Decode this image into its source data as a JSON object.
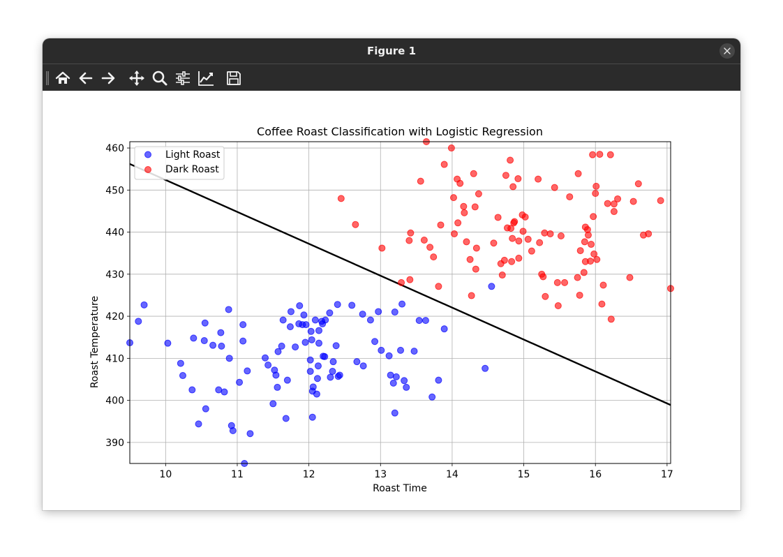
{
  "window": {
    "title": "Figure 1"
  },
  "toolbar": {
    "buttons": [
      "home-icon",
      "back-arrow-icon",
      "forward-arrow-icon",
      "pan-icon",
      "zoom-icon",
      "configure-subplots-icon",
      "edit-axis-icon",
      "save-icon"
    ]
  },
  "colors": {
    "light_roast": "#0000ff",
    "dark_roast": "#ff0000",
    "boundary": "#000000",
    "titlebar": "#2b2b2b"
  },
  "chart_data": {
    "type": "scatter",
    "title": "Coffee Roast Classification with Logistic Regression",
    "xlabel": "Roast Time",
    "ylabel": "Roast Temperature",
    "xlim": [
      9.5,
      17.05
    ],
    "ylim": [
      385,
      461.5
    ],
    "xticks": [
      "10",
      "11",
      "12",
      "13",
      "14",
      "15",
      "16",
      "17"
    ],
    "yticks": [
      "390",
      "400",
      "410",
      "420",
      "430",
      "440",
      "450",
      "460"
    ],
    "grid": true,
    "legend": "top-left",
    "series": [
      {
        "name": "Light Roast",
        "color": "#0000ff",
        "points": [
          [
            9.5,
            413.7
          ],
          [
            9.62,
            418.8
          ],
          [
            9.7,
            422.7
          ],
          [
            10.03,
            413.6
          ],
          [
            10.21,
            408.8
          ],
          [
            10.24,
            405.9
          ],
          [
            10.37,
            402.5
          ],
          [
            10.39,
            414.8
          ],
          [
            10.46,
            394.4
          ],
          [
            10.54,
            414.2
          ],
          [
            10.55,
            418.4
          ],
          [
            10.56,
            398
          ],
          [
            10.66,
            413.1
          ],
          [
            10.74,
            402.5
          ],
          [
            10.77,
            416.1
          ],
          [
            10.78,
            412.9
          ],
          [
            10.82,
            402
          ],
          [
            10.88,
            421.6
          ],
          [
            10.89,
            410
          ],
          [
            10.92,
            394
          ],
          [
            10.94,
            392.8
          ],
          [
            11.03,
            404.3
          ],
          [
            11.08,
            418
          ],
          [
            11.08,
            414.1
          ],
          [
            11.1,
            385
          ],
          [
            11.14,
            407
          ],
          [
            11.18,
            392.1
          ],
          [
            11.39,
            410.1
          ],
          [
            11.43,
            408.4
          ],
          [
            11.5,
            399.2
          ],
          [
            11.52,
            407.2
          ],
          [
            11.54,
            406
          ],
          [
            11.56,
            403.1
          ],
          [
            11.57,
            411.6
          ],
          [
            11.62,
            412.9
          ],
          [
            11.64,
            419.1
          ],
          [
            11.68,
            395.7
          ],
          [
            11.7,
            404.8
          ],
          [
            11.74,
            417.5
          ],
          [
            11.75,
            421.1
          ],
          [
            11.81,
            412.7
          ],
          [
            11.86,
            418.2
          ],
          [
            11.87,
            422.5
          ],
          [
            11.91,
            418
          ],
          [
            11.93,
            420.3
          ],
          [
            11.95,
            413.8
          ],
          [
            11.96,
            418
          ],
          [
            12.02,
            409.6
          ],
          [
            12.02,
            406.9
          ],
          [
            12.03,
            416.4
          ],
          [
            12.04,
            414.4
          ],
          [
            12.05,
            396
          ],
          [
            12.05,
            402.2
          ],
          [
            12.06,
            403.2
          ],
          [
            12.09,
            419.1
          ],
          [
            12.11,
            401.5
          ],
          [
            12.12,
            405.2
          ],
          [
            12.13,
            408.2
          ],
          [
            12.14,
            413.6
          ],
          [
            12.14,
            416.6
          ],
          [
            12.18,
            418.8
          ],
          [
            12.19,
            418.2
          ],
          [
            12.2,
            410.5
          ],
          [
            12.22,
            410.4
          ],
          [
            12.23,
            419.1
          ],
          [
            12.29,
            420.8
          ],
          [
            12.3,
            405.5
          ],
          [
            12.33,
            406.9
          ],
          [
            12.34,
            409.2
          ],
          [
            12.38,
            413
          ],
          [
            12.4,
            422.8
          ],
          [
            12.41,
            405.7
          ],
          [
            12.43,
            406
          ],
          [
            12.6,
            422.6
          ],
          [
            12.67,
            409.2
          ],
          [
            12.75,
            420.5
          ],
          [
            12.76,
            408.2
          ],
          [
            12.86,
            419.1
          ],
          [
            12.92,
            414
          ],
          [
            12.97,
            421.1
          ],
          [
            13.01,
            411.9
          ],
          [
            13.12,
            410.6
          ],
          [
            13.14,
            406
          ],
          [
            13.18,
            404.1
          ],
          [
            13.2,
            421
          ],
          [
            13.2,
            397
          ],
          [
            13.22,
            405.6
          ],
          [
            13.28,
            411.9
          ],
          [
            13.3,
            422.9
          ],
          [
            13.33,
            404.7
          ],
          [
            13.36,
            403.1
          ],
          [
            13.47,
            411.7
          ],
          [
            13.54,
            419
          ],
          [
            13.63,
            419
          ],
          [
            13.72,
            400.8
          ],
          [
            13.81,
            404.8
          ],
          [
            13.89,
            417
          ],
          [
            14.46,
            407.6
          ],
          [
            14.55,
            427.1
          ]
        ]
      },
      {
        "name": "Dark Roast",
        "color": "#ff0000",
        "points": [
          [
            12.45,
            448
          ],
          [
            12.65,
            441.8
          ],
          [
            13.02,
            436.2
          ],
          [
            13.29,
            428
          ],
          [
            13.4,
            438
          ],
          [
            13.41,
            428.7
          ],
          [
            13.42,
            439.8
          ],
          [
            13.56,
            452.1
          ],
          [
            13.61,
            438.1
          ],
          [
            13.64,
            461.5
          ],
          [
            13.69,
            436.4
          ],
          [
            13.74,
            434.1
          ],
          [
            13.81,
            427.1
          ],
          [
            13.84,
            441.7
          ],
          [
            13.89,
            456.1
          ],
          [
            13.99,
            460
          ],
          [
            14.02,
            448.2
          ],
          [
            14.03,
            439.6
          ],
          [
            14.07,
            452.6
          ],
          [
            14.08,
            442.2
          ],
          [
            14.11,
            451.6
          ],
          [
            14.16,
            446.1
          ],
          [
            14.17,
            444.6
          ],
          [
            14.2,
            437.7
          ],
          [
            14.25,
            433.5
          ],
          [
            14.27,
            424.9
          ],
          [
            14.3,
            453.9
          ],
          [
            14.32,
            446
          ],
          [
            14.33,
            431.2
          ],
          [
            14.34,
            436.2
          ],
          [
            14.37,
            449.1
          ],
          [
            14.58,
            437.4
          ],
          [
            14.64,
            443.5
          ],
          [
            14.68,
            432.5
          ],
          [
            14.7,
            429.8
          ],
          [
            14.73,
            433.3
          ],
          [
            14.75,
            453.5
          ],
          [
            14.77,
            441
          ],
          [
            14.81,
            457.1
          ],
          [
            14.82,
            440.9
          ],
          [
            14.83,
            433
          ],
          [
            14.84,
            438.5
          ],
          [
            14.85,
            450.8
          ],
          [
            14.86,
            442.2
          ],
          [
            14.87,
            442.5
          ],
          [
            14.92,
            452.7
          ],
          [
            14.93,
            437.9
          ],
          [
            14.93,
            433.8
          ],
          [
            14.98,
            444.1
          ],
          [
            14.99,
            440.2
          ],
          [
            15.02,
            443.6
          ],
          [
            15.06,
            438.3
          ],
          [
            15.11,
            435.5
          ],
          [
            15.2,
            452.6
          ],
          [
            15.22,
            437.5
          ],
          [
            15.25,
            430
          ],
          [
            15.27,
            429.4
          ],
          [
            15.29,
            439.8
          ],
          [
            15.3,
            424.7
          ],
          [
            15.37,
            439.6
          ],
          [
            15.43,
            450.6
          ],
          [
            15.47,
            428
          ],
          [
            15.48,
            422.5
          ],
          [
            15.52,
            439.1
          ],
          [
            15.57,
            428
          ],
          [
            15.64,
            448.4
          ],
          [
            15.75,
            429.2
          ],
          [
            15.76,
            453.9
          ],
          [
            15.78,
            425
          ],
          [
            15.79,
            435.6
          ],
          [
            15.84,
            430.4
          ],
          [
            15.85,
            437.7
          ],
          [
            15.86,
            441.2
          ],
          [
            15.86,
            433
          ],
          [
            15.89,
            440.6
          ],
          [
            15.9,
            439.3
          ],
          [
            15.93,
            433.1
          ],
          [
            15.94,
            437.1
          ],
          [
            15.96,
            458.4
          ],
          [
            15.97,
            443.7
          ],
          [
            15.98,
            434.8
          ],
          [
            16.0,
            449.2
          ],
          [
            16.01,
            450.9
          ],
          [
            16.02,
            433.5
          ],
          [
            16.06,
            458.5
          ],
          [
            16.09,
            422.9
          ],
          [
            16.11,
            427.4
          ],
          [
            16.17,
            446.8
          ],
          [
            16.21,
            458.4
          ],
          [
            16.22,
            419.3
          ],
          [
            16.26,
            444.9
          ],
          [
            16.26,
            446.7
          ],
          [
            16.31,
            447.9
          ],
          [
            16.48,
            429.2
          ],
          [
            16.53,
            447.3
          ],
          [
            16.6,
            451.5
          ],
          [
            16.67,
            439.3
          ],
          [
            16.74,
            439.6
          ],
          [
            16.91,
            447.5
          ],
          [
            17.05,
            426.6
          ]
        ]
      }
    ],
    "decision_boundary": {
      "type": "line",
      "points": [
        [
          9.5,
          456.2
        ],
        [
          17.05,
          398.9
        ]
      ]
    }
  }
}
